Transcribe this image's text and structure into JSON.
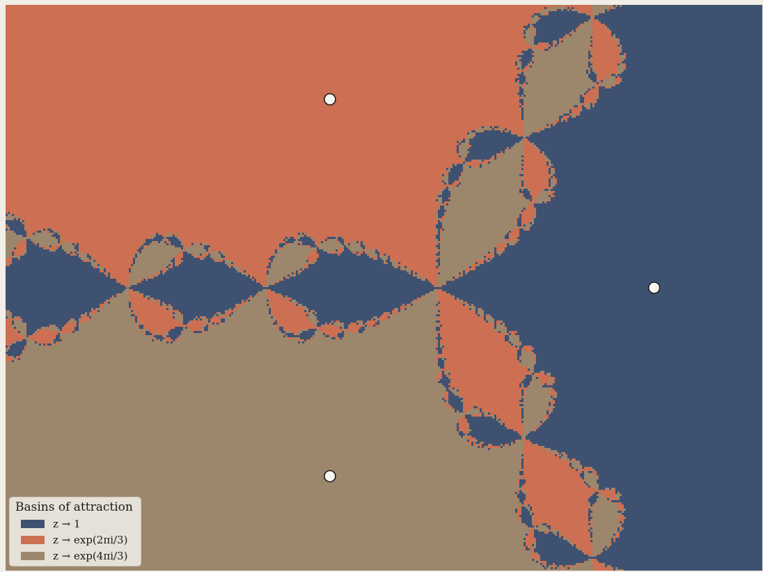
{
  "colors": {
    "basin_1": "#3e5171",
    "basin_2": "#cc6f52",
    "basin_3": "#9c876c",
    "frame": "#f1eee8",
    "root_marker_fill": "#f8f6f1",
    "root_marker_stroke": "#1a1a1a"
  },
  "view": {
    "re_range": [
      -2.0,
      1.5
    ],
    "im_range": [
      -1.3,
      1.3
    ]
  },
  "roots": [
    {
      "name": "1",
      "re": 1.0,
      "im": 0.0
    },
    {
      "name": "exp(2πi/3)",
      "re": -0.5,
      "im": 0.866
    },
    {
      "name": "exp(4πi/3)",
      "re": -0.5,
      "im": -0.866
    }
  ],
  "legend": {
    "title": "Basins of attraction",
    "items": [
      {
        "label": "z → 1",
        "color": "#3e5171"
      },
      {
        "label": "z → exp(2πi/3)",
        "color": "#cc6f52"
      },
      {
        "label": "z → exp(4πi/3)",
        "color": "#9c876c"
      }
    ]
  }
}
